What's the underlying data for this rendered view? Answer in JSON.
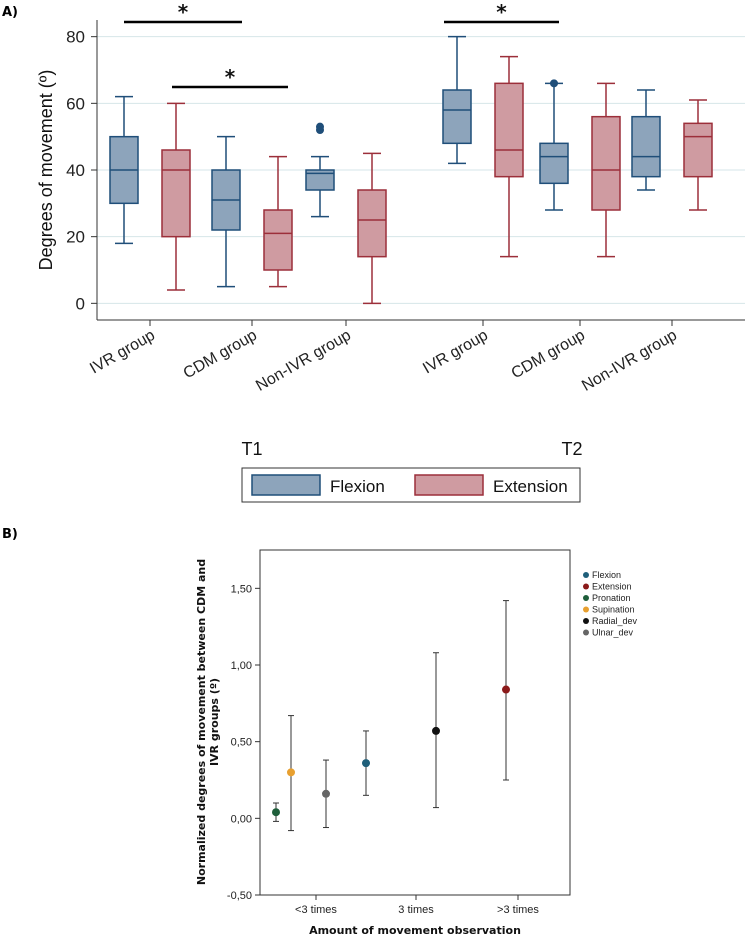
{
  "panel_labels": {
    "a": "A)",
    "b": "B)"
  },
  "colors": {
    "flexion_fill": "#8da4bb",
    "flexion_stroke": "#1f4e79",
    "extension_fill": "#cf9ba1",
    "extension_stroke": "#9c2f3a",
    "grid": "#d6e6e8",
    "dot_flexion": "#1f5f7a",
    "dot_extension": "#8b1a1a",
    "dot_pronation": "#1e5e3a",
    "dot_supination": "#e8a030",
    "dot_radial": "#111111",
    "dot_ulnar": "#666666"
  },
  "chart_data": [
    {
      "type": "box",
      "panel": "A)",
      "ylabel": "Degrees of movement (º)",
      "ylim": [
        -5,
        85
      ],
      "yticks": [
        0,
        20,
        40,
        60,
        80
      ],
      "grid": true,
      "categories": [
        "IVR group",
        "CDM group",
        "Non-IVR group",
        "IVR group",
        "CDM group",
        "Non-IVR group"
      ],
      "time_points": [
        {
          "label": "T1",
          "categories": [
            0,
            1,
            2
          ]
        },
        {
          "label": "T2",
          "categories": [
            3,
            4,
            5
          ]
        }
      ],
      "legend": {
        "placement": "bottom-center",
        "entries": [
          "Flexion",
          "Extension"
        ]
      },
      "series": [
        {
          "name": "Flexion",
          "boxes": [
            {
              "min": 18,
              "q1": 30,
              "median": 40,
              "q3": 50,
              "max": 62,
              "outliers": []
            },
            {
              "min": 5,
              "q1": 22,
              "median": 31,
              "q3": 40,
              "max": 50,
              "outliers": []
            },
            {
              "min": 26,
              "q1": 34,
              "median": 39,
              "q3": 40,
              "max": 44,
              "outliers": [
                52,
                53
              ]
            },
            {
              "min": 42,
              "q1": 48,
              "median": 58,
              "q3": 64,
              "max": 80,
              "outliers": []
            },
            {
              "min": 28,
              "q1": 36,
              "median": 44,
              "q3": 48,
              "max": 66,
              "outliers": [
                66
              ]
            },
            {
              "min": 34,
              "q1": 38,
              "median": 44,
              "q3": 56,
              "max": 64,
              "outliers": []
            }
          ]
        },
        {
          "name": "Extension",
          "boxes": [
            {
              "min": 4,
              "q1": 20,
              "median": 40,
              "q3": 46,
              "max": 60,
              "outliers": []
            },
            {
              "min": 5,
              "q1": 10,
              "median": 21,
              "q3": 28,
              "max": 44,
              "outliers": []
            },
            {
              "min": 0,
              "q1": 14,
              "median": 25,
              "q3": 34,
              "max": 45,
              "outliers": []
            },
            {
              "min": 14,
              "q1": 38,
              "median": 46,
              "q3": 66,
              "max": 74,
              "outliers": []
            },
            {
              "min": 14,
              "q1": 28,
              "median": 40,
              "q3": 56,
              "max": 66,
              "outliers": []
            },
            {
              "min": 28,
              "q1": 38,
              "median": 50,
              "q3": 54,
              "max": 61,
              "outliers": []
            }
          ]
        }
      ],
      "significance": [
        {
          "label": "*",
          "from": "IVR group (T1) Flexion",
          "to": "CDM group (T1) Flexion"
        },
        {
          "label": "*",
          "from": "IVR group (T1) Extension",
          "to": "CDM group (T1) Extension"
        },
        {
          "label": "*",
          "from": "IVR group (T2) Flexion",
          "to": "CDM group (T2) Flexion"
        }
      ]
    },
    {
      "type": "errorbar",
      "panel": "B)",
      "xlabel": "Amount of movement observation",
      "ylabel_lines": [
        "Normalized degrees of movement  between CDM and",
        "IVR groups (º)"
      ],
      "categories": [
        "<3 times",
        "3 times",
        ">3 times"
      ],
      "ylim": [
        -0.5,
        1.75
      ],
      "yticks": [
        -0.5,
        0.0,
        0.5,
        1.0,
        1.5
      ],
      "ytick_labels": [
        "-0,50",
        "0,00",
        "0,50",
        "1,00",
        "1,50"
      ],
      "legend": {
        "placement": "right",
        "entries": [
          "Flexion",
          "Extension",
          "Pronation",
          "Supination",
          "Radial_dev",
          "Ulnar_dev"
        ]
      },
      "points": [
        {
          "name": "Pronation",
          "x": 0.6,
          "y": 0.04,
          "low": -0.02,
          "high": 0.1,
          "color_key": "dot_pronation"
        },
        {
          "name": "Supination",
          "x": 0.75,
          "y": 0.3,
          "low": -0.08,
          "high": 0.67,
          "color_key": "dot_supination"
        },
        {
          "name": "Ulnar_dev",
          "x": 1.1,
          "y": 0.16,
          "low": -0.06,
          "high": 0.38,
          "color_key": "dot_ulnar"
        },
        {
          "name": "Flexion",
          "x": 1.5,
          "y": 0.36,
          "low": 0.15,
          "high": 0.57,
          "color_key": "dot_flexion"
        },
        {
          "name": "Radial_dev",
          "x": 2.2,
          "y": 0.57,
          "low": 0.07,
          "high": 1.08,
          "color_key": "dot_radial"
        },
        {
          "name": "Extension",
          "x": 2.9,
          "y": 0.84,
          "low": 0.25,
          "high": 1.42,
          "color_key": "dot_extension"
        }
      ]
    }
  ]
}
